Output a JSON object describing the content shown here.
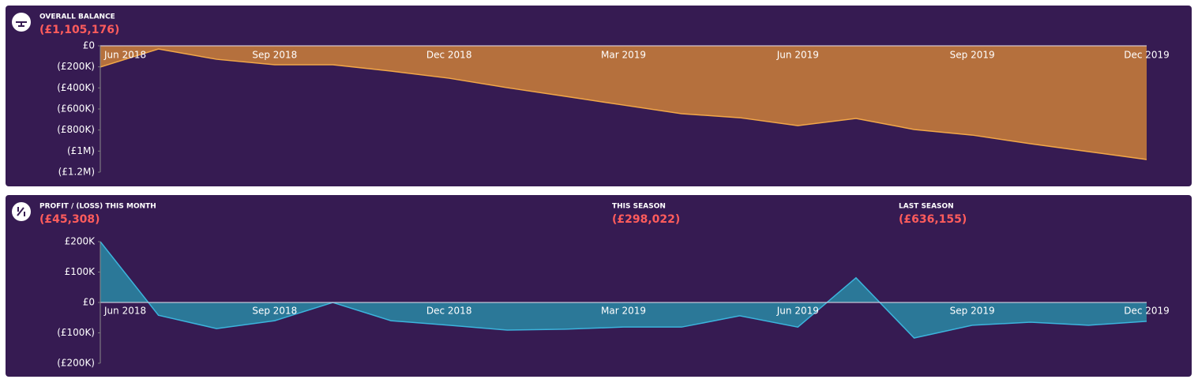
{
  "chart_data": [
    {
      "type": "area",
      "title": "OVERALL BALANCE",
      "headline": "(£1,105,176)",
      "categories": [
        "Jun 2018",
        null,
        null,
        "Sep 2018",
        null,
        null,
        "Dec 2018",
        null,
        null,
        "Mar 2019",
        null,
        null,
        "Jun 2019",
        null,
        null,
        "Sep 2019",
        null,
        null,
        "Dec 2019"
      ],
      "series": [
        {
          "name": "Overall balance",
          "color": "#b5703d",
          "line_color": "#f2a748",
          "values": [
            -202000,
            -30000,
            -128000,
            -180000,
            -180000,
            -240000,
            -308000,
            -398000,
            -480000,
            -563000,
            -645000,
            -683000,
            -758000,
            -690000,
            -795000,
            -848000,
            -930000,
            -1005000,
            -1080000
          ]
        }
      ],
      "ylim": [
        -1200000,
        0
      ],
      "yticks": [
        {
          "value": 0,
          "label": "£0"
        },
        {
          "value": -200000,
          "label": "(£200K)"
        },
        {
          "value": -400000,
          "label": "(£400K)"
        },
        {
          "value": -600000,
          "label": "(£600K)"
        },
        {
          "value": -800000,
          "label": "(£800K)"
        },
        {
          "value": -1000000,
          "label": "(£1M)"
        },
        {
          "value": -1200000,
          "label": "(£1.2M)"
        }
      ]
    },
    {
      "type": "area",
      "title": "PROFIT / (LOSS) THIS MONTH",
      "headline": "(£45,308)",
      "stats": [
        {
          "label": "THIS SEASON",
          "value": "(£298,022)"
        },
        {
          "label": "LAST SEASON",
          "value": "(£636,155)"
        }
      ],
      "categories": [
        "Jun 2018",
        null,
        null,
        "Sep 2018",
        null,
        null,
        "Dec 2018",
        null,
        null,
        "Mar 2019",
        null,
        null,
        "Jun 2019",
        null,
        null,
        "Sep 2019",
        null,
        null,
        "Dec 2019"
      ],
      "series": [
        {
          "name": "Profit / (loss)",
          "color": "#2b7898",
          "line_color": "#3cb3dc",
          "values": [
            200000,
            -42000,
            -86000,
            -60000,
            0,
            -60000,
            -75000,
            -91000,
            -88000,
            -81000,
            -81000,
            -44000,
            -81000,
            81000,
            -117000,
            -75000,
            -65000,
            -75000,
            -62000
          ]
        }
      ],
      "ylim": [
        -200000,
        200000
      ],
      "yticks": [
        {
          "value": 200000,
          "label": "£200K"
        },
        {
          "value": 100000,
          "label": "£100K"
        },
        {
          "value": 0,
          "label": "£0"
        },
        {
          "value": -100000,
          "label": "(£100K)"
        },
        {
          "value": -200000,
          "label": "(£200K)"
        }
      ]
    }
  ]
}
